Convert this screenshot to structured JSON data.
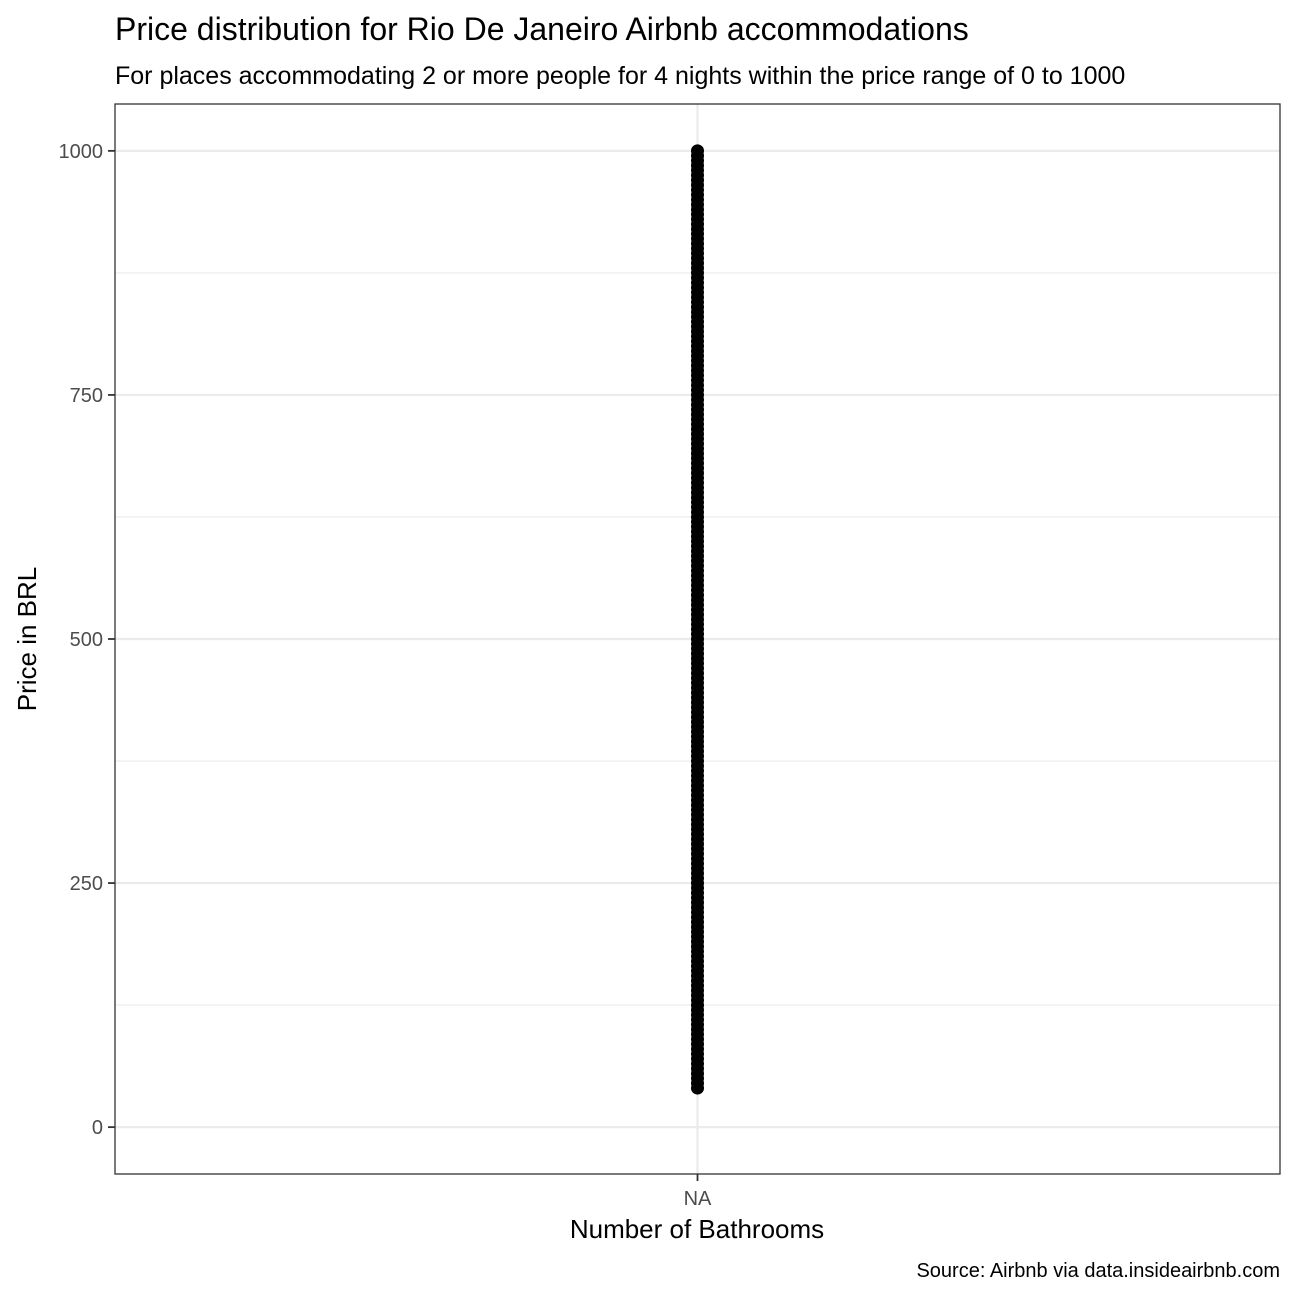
{
  "chart_data": {
    "type": "scatter",
    "title": "Price distribution for Rio De Janeiro Airbnb accommodations",
    "subtitle": "For places accommodating 2 or more people for 4 nights within the price range of 0 to 1000",
    "xlabel": "Number of Bathrooms",
    "ylabel": "Price in BRL",
    "caption": "Source: Airbnb via data.insideairbnb.com",
    "categories": [
      "NA"
    ],
    "y_ticks": [
      0,
      250,
      500,
      750,
      1000
    ],
    "y_tick_labels": [
      "0",
      "250",
      "500",
      "750",
      "1000"
    ],
    "ylim": [
      -48,
      1048
    ],
    "grid": true,
    "legend": "none",
    "point_color": "#000000",
    "series": [
      {
        "category": "NA",
        "y_min": 40,
        "y_max": 1000,
        "y_step": 5
      }
    ]
  }
}
